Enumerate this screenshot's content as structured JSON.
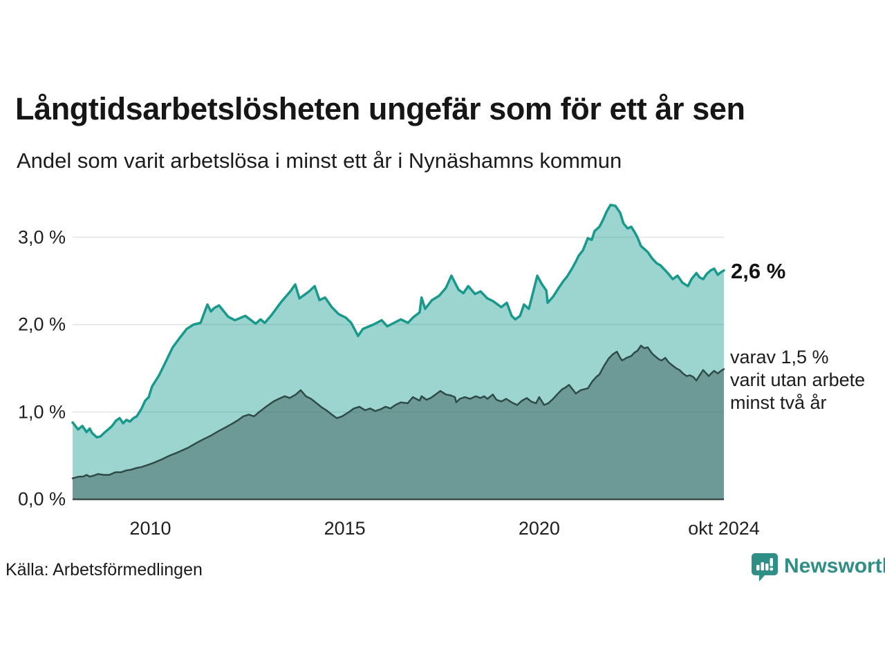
{
  "header": {
    "title": "Långtidsarbetslösheten ungefär som för ett år sen",
    "subtitle": "Andel som varit arbetslösa i minst ett år i Nynäshamns kommun"
  },
  "chart_data": {
    "type": "area",
    "title": "Långtidsarbetslösheten ungefär som för ett år sen",
    "subtitle": "Andel som varit arbetslösa i minst ett år i Nynäshamns kommun",
    "x_unit": "months since 2008-01, ending okt 2024",
    "x_domain": [
      0,
      201
    ],
    "y_domain": [
      0,
      3.5
    ],
    "grid_on": true,
    "grid_values": [
      1,
      2,
      3
    ],
    "grid_color": "#e2e2e5",
    "axis_color": "#3f4a47",
    "y_ticks": [
      {
        "label": "0,0 %",
        "value": 0
      },
      {
        "label": "1,0 %",
        "value": 1
      },
      {
        "label": "2,0 %",
        "value": 2
      },
      {
        "label": "3,0 %",
        "value": 3
      }
    ],
    "x_ticks": [
      {
        "label": "2010",
        "m": 24
      },
      {
        "label": "2015",
        "m": 84
      },
      {
        "label": "2020",
        "m": 144
      },
      {
        "label": "okt 2024",
        "m": 201
      }
    ],
    "series": [
      {
        "name": "Andel arbetslösa minst ett år",
        "color": "#18998c",
        "fill": "rgba(20,153,140,0.42)",
        "stroke_width": 3.5,
        "end_value_pct": 2.6,
        "end_label": "2,6 %",
        "points": [
          [
            0,
            0.88
          ],
          [
            1.7,
            0.8
          ],
          [
            3,
            0.84
          ],
          [
            4.3,
            0.77
          ],
          [
            5.3,
            0.81
          ],
          [
            6,
            0.76
          ],
          [
            7.5,
            0.71
          ],
          [
            8.6,
            0.72
          ],
          [
            10,
            0.77
          ],
          [
            11,
            0.8
          ],
          [
            12.2,
            0.84
          ],
          [
            13.4,
            0.9
          ],
          [
            14.5,
            0.93
          ],
          [
            15.6,
            0.87
          ],
          [
            16.6,
            0.91
          ],
          [
            17.7,
            0.89
          ],
          [
            18.8,
            0.93
          ],
          [
            19.8,
            0.95
          ],
          [
            21.3,
            1.04
          ],
          [
            22.4,
            1.13
          ],
          [
            23.5,
            1.17
          ],
          [
            24.5,
            1.29
          ],
          [
            26.7,
            1.42
          ],
          [
            28.8,
            1.58
          ],
          [
            30.9,
            1.74
          ],
          [
            33.1,
            1.85
          ],
          [
            35.2,
            1.95
          ],
          [
            37.3,
            2.0
          ],
          [
            39.5,
            2.02
          ],
          [
            41.6,
            2.23
          ],
          [
            42.7,
            2.15
          ],
          [
            43.7,
            2.19
          ],
          [
            45.2,
            2.22
          ],
          [
            48,
            2.09
          ],
          [
            50.1,
            2.05
          ],
          [
            53.3,
            2.1
          ],
          [
            56.5,
            2.01
          ],
          [
            58,
            2.06
          ],
          [
            59.3,
            2.02
          ],
          [
            61.4,
            2.11
          ],
          [
            64.4,
            2.26
          ],
          [
            67.2,
            2.38
          ],
          [
            68.7,
            2.46
          ],
          [
            70,
            2.3
          ],
          [
            73,
            2.38
          ],
          [
            74.7,
            2.44
          ],
          [
            76.2,
            2.28
          ],
          [
            77.9,
            2.31
          ],
          [
            80,
            2.2
          ],
          [
            82.1,
            2.12
          ],
          [
            84.3,
            2.08
          ],
          [
            86,
            2.02
          ],
          [
            88.1,
            1.87
          ],
          [
            89.6,
            1.95
          ],
          [
            92.8,
            2.0
          ],
          [
            95.4,
            2.05
          ],
          [
            97.1,
            1.98
          ],
          [
            99.2,
            2.02
          ],
          [
            101.3,
            2.06
          ],
          [
            103.5,
            2.02
          ],
          [
            105,
            2.08
          ],
          [
            107.1,
            2.14
          ],
          [
            107.7,
            2.31
          ],
          [
            108.8,
            2.18
          ],
          [
            110.9,
            2.28
          ],
          [
            113.1,
            2.33
          ],
          [
            115.2,
            2.42
          ],
          [
            116.9,
            2.56
          ],
          [
            118,
            2.48
          ],
          [
            119.1,
            2.4
          ],
          [
            120.6,
            2.36
          ],
          [
            122.1,
            2.44
          ],
          [
            124.2,
            2.35
          ],
          [
            125.9,
            2.38
          ],
          [
            128,
            2.3
          ],
          [
            129.7,
            2.27
          ],
          [
            132.3,
            2.2
          ],
          [
            134,
            2.25
          ],
          [
            135.5,
            2.1
          ],
          [
            136.6,
            2.06
          ],
          [
            138.1,
            2.1
          ],
          [
            139.3,
            2.23
          ],
          [
            140.8,
            2.18
          ],
          [
            143.4,
            2.56
          ],
          [
            144.7,
            2.47
          ],
          [
            146.2,
            2.39
          ],
          [
            146.6,
            2.25
          ],
          [
            148.3,
            2.32
          ],
          [
            150,
            2.42
          ],
          [
            151.5,
            2.5
          ],
          [
            152.6,
            2.55
          ],
          [
            154.1,
            2.64
          ],
          [
            155.3,
            2.72
          ],
          [
            156.2,
            2.79
          ],
          [
            157.5,
            2.85
          ],
          [
            159,
            2.99
          ],
          [
            160.2,
            2.97
          ],
          [
            161.1,
            3.07
          ],
          [
            162.6,
            3.12
          ],
          [
            163.7,
            3.2
          ],
          [
            164.9,
            3.3
          ],
          [
            166,
            3.37
          ],
          [
            167.5,
            3.36
          ],
          [
            169,
            3.28
          ],
          [
            170,
            3.16
          ],
          [
            171.3,
            3.1
          ],
          [
            172.4,
            3.12
          ],
          [
            173.4,
            3.06
          ],
          [
            174.3,
            3.0
          ],
          [
            175.4,
            2.9
          ],
          [
            176.6,
            2.86
          ],
          [
            177.5,
            2.83
          ],
          [
            178.8,
            2.76
          ],
          [
            180.3,
            2.7
          ],
          [
            181.4,
            2.68
          ],
          [
            182.4,
            2.64
          ],
          [
            183.9,
            2.58
          ],
          [
            185.2,
            2.52
          ],
          [
            186.7,
            2.56
          ],
          [
            188.2,
            2.48
          ],
          [
            189.9,
            2.44
          ],
          [
            191,
            2.52
          ],
          [
            192.5,
            2.59
          ],
          [
            193.5,
            2.54
          ],
          [
            194.6,
            2.52
          ],
          [
            195.7,
            2.58
          ],
          [
            196.9,
            2.62
          ],
          [
            198,
            2.64
          ],
          [
            199.1,
            2.57
          ],
          [
            200.1,
            2.6
          ],
          [
            201,
            2.62
          ]
        ]
      },
      {
        "name": "Andel arbetslösa minst två år",
        "color": "#2e4b47",
        "fill": "rgba(46,75,71,0.42)",
        "stroke_width": 2.5,
        "end_value_pct": 1.5,
        "end_label": "varav 1,5 % varit utan arbete minst två år",
        "points": [
          [
            0,
            0.24
          ],
          [
            2,
            0.26
          ],
          [
            3.2,
            0.26
          ],
          [
            4.3,
            0.28
          ],
          [
            5.3,
            0.26
          ],
          [
            6.4,
            0.27
          ],
          [
            7.9,
            0.29
          ],
          [
            9.6,
            0.28
          ],
          [
            11.3,
            0.28
          ],
          [
            13.2,
            0.31
          ],
          [
            15,
            0.31
          ],
          [
            16.4,
            0.33
          ],
          [
            18.1,
            0.34
          ],
          [
            19.8,
            0.36
          ],
          [
            21.3,
            0.37
          ],
          [
            22.9,
            0.39
          ],
          [
            24.5,
            0.41
          ],
          [
            27.7,
            0.46
          ],
          [
            29.9,
            0.5
          ],
          [
            32.6,
            0.54
          ],
          [
            35.6,
            0.59
          ],
          [
            38.4,
            0.65
          ],
          [
            40.5,
            0.69
          ],
          [
            42.7,
            0.73
          ],
          [
            45,
            0.78
          ],
          [
            47,
            0.82
          ],
          [
            49,
            0.86
          ],
          [
            51.2,
            0.91
          ],
          [
            52.7,
            0.95
          ],
          [
            54.4,
            0.97
          ],
          [
            56,
            0.95
          ],
          [
            57.6,
            1.0
          ],
          [
            59.7,
            1.06
          ],
          [
            62,
            1.12
          ],
          [
            63.6,
            1.15
          ],
          [
            65.5,
            1.18
          ],
          [
            67,
            1.16
          ],
          [
            68.9,
            1.2
          ],
          [
            70.4,
            1.25
          ],
          [
            72,
            1.18
          ],
          [
            73.6,
            1.15
          ],
          [
            75.3,
            1.1
          ],
          [
            77,
            1.05
          ],
          [
            78.3,
            1.02
          ],
          [
            80,
            0.97
          ],
          [
            81.5,
            0.93
          ],
          [
            83.2,
            0.95
          ],
          [
            85.3,
            1.0
          ],
          [
            86.8,
            1.04
          ],
          [
            88.5,
            1.06
          ],
          [
            90.3,
            1.02
          ],
          [
            91.8,
            1.04
          ],
          [
            93.4,
            1.01
          ],
          [
            95,
            1.03
          ],
          [
            96.6,
            1.06
          ],
          [
            98.1,
            1.04
          ],
          [
            99.6,
            1.08
          ],
          [
            101.3,
            1.11
          ],
          [
            103.4,
            1.1
          ],
          [
            105,
            1.17
          ],
          [
            107.1,
            1.13
          ],
          [
            107.7,
            1.18
          ],
          [
            109.2,
            1.14
          ],
          [
            110.5,
            1.16
          ],
          [
            112,
            1.2
          ],
          [
            113.5,
            1.24
          ],
          [
            115.2,
            1.2
          ],
          [
            116.7,
            1.19
          ],
          [
            118,
            1.17
          ],
          [
            118.4,
            1.11
          ],
          [
            119.5,
            1.15
          ],
          [
            121,
            1.17
          ],
          [
            122.7,
            1.15
          ],
          [
            124.4,
            1.18
          ],
          [
            125.9,
            1.16
          ],
          [
            127,
            1.18
          ],
          [
            128,
            1.15
          ],
          [
            129.7,
            1.2
          ],
          [
            130.8,
            1.14
          ],
          [
            132.3,
            1.12
          ],
          [
            133.8,
            1.15
          ],
          [
            135.5,
            1.11
          ],
          [
            137.2,
            1.08
          ],
          [
            138.7,
            1.13
          ],
          [
            140.2,
            1.16
          ],
          [
            141.5,
            1.12
          ],
          [
            143,
            1.1
          ],
          [
            144,
            1.17
          ],
          [
            145.5,
            1.08
          ],
          [
            146.8,
            1.1
          ],
          [
            148.3,
            1.15
          ],
          [
            149.8,
            1.21
          ],
          [
            151.1,
            1.26
          ],
          [
            152.1,
            1.28
          ],
          [
            153.2,
            1.31
          ],
          [
            154.3,
            1.26
          ],
          [
            155.3,
            1.21
          ],
          [
            156.8,
            1.25
          ],
          [
            157.9,
            1.26
          ],
          [
            159,
            1.27
          ],
          [
            160.4,
            1.35
          ],
          [
            161.6,
            1.4
          ],
          [
            162.6,
            1.43
          ],
          [
            163.9,
            1.52
          ],
          [
            165.4,
            1.61
          ],
          [
            166.7,
            1.66
          ],
          [
            168,
            1.69
          ],
          [
            169,
            1.62
          ],
          [
            169.6,
            1.59
          ],
          [
            171,
            1.62
          ],
          [
            172.4,
            1.64
          ],
          [
            173.4,
            1.68
          ],
          [
            174.3,
            1.7
          ],
          [
            175.4,
            1.76
          ],
          [
            176.4,
            1.73
          ],
          [
            177.5,
            1.74
          ],
          [
            178.8,
            1.67
          ],
          [
            179.7,
            1.64
          ],
          [
            181,
            1.6
          ],
          [
            181.8,
            1.59
          ],
          [
            182.9,
            1.62
          ],
          [
            183.9,
            1.57
          ],
          [
            185.2,
            1.53
          ],
          [
            186.3,
            1.5
          ],
          [
            187.3,
            1.48
          ],
          [
            188.4,
            1.44
          ],
          [
            189.5,
            1.41
          ],
          [
            190.5,
            1.42
          ],
          [
            191.6,
            1.4
          ],
          [
            192.5,
            1.36
          ],
          [
            193.5,
            1.42
          ],
          [
            194.6,
            1.48
          ],
          [
            195.6,
            1.44
          ],
          [
            196.3,
            1.41
          ],
          [
            197.3,
            1.45
          ],
          [
            198,
            1.47
          ],
          [
            199.1,
            1.44
          ],
          [
            200.1,
            1.47
          ],
          [
            201,
            1.49
          ]
        ]
      }
    ]
  },
  "annotations": {
    "value_label": "2,6 %",
    "note_lines": [
      "varav 1,5 %",
      "varit utan arbete",
      "minst två år"
    ]
  },
  "footer": {
    "source": "Källa: Arbetsförmedlingen",
    "brand": "Newsworthy",
    "brand_color": "#2f8e85"
  }
}
